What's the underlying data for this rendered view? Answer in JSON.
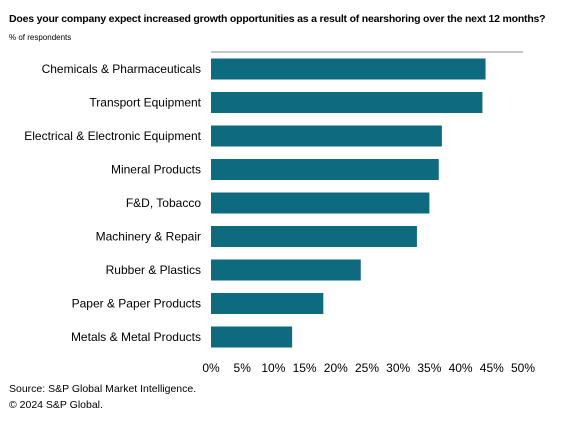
{
  "title": "Does your company expect increased growth opportunities as a result of nearshoring over the next 12 months?",
  "subtitle": "% of respondents",
  "source": "Source: S&P Global Market Intelligence.",
  "copyright": "© 2024 S&P Global.",
  "chart_data": {
    "type": "bar",
    "orientation": "horizontal",
    "categories": [
      "Chemicals & Pharmaceuticals",
      "Transport Equipment",
      "Electrical & Electronic Equipment",
      "Mineral Products",
      "F&D, Tobacco",
      "Machinery & Repair",
      "Rubber & Plastics",
      "Paper & Paper Products",
      "Metals & Metal Products"
    ],
    "values": [
      44,
      43.5,
      37,
      36.5,
      35,
      33,
      24,
      18,
      13
    ],
    "unit": "%",
    "xlim": [
      0,
      50
    ],
    "ticks": [
      "0%",
      "5%",
      "10%",
      "15%",
      "20%",
      "25%",
      "30%",
      "35%",
      "40%",
      "45%",
      "50%"
    ],
    "tick_values": [
      0,
      5,
      10,
      15,
      20,
      25,
      30,
      35,
      40,
      45,
      50
    ],
    "bar_color": "#0e6b7f",
    "grid": false,
    "legend": "none"
  }
}
